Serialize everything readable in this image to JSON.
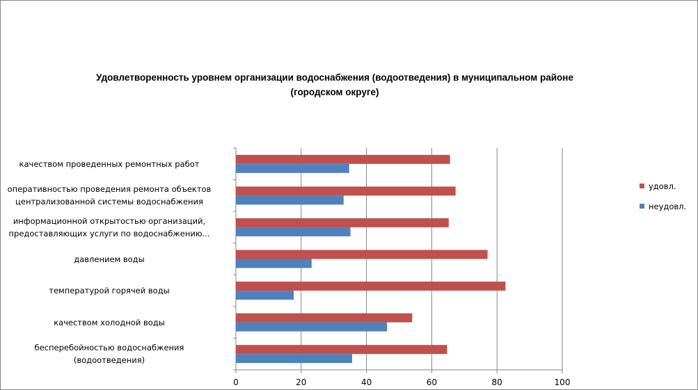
{
  "chart_data": {
    "type": "bar",
    "orientation": "horizontal",
    "title": "Удовлетворенность уровнем организации водоснабжения (водоотведения) в муниципальном районе (городском округе)",
    "title_lines": [
      "Удовлетворенность уровнем организации водоснабжения (водоотведения) в муниципальном районе",
      "(городском округе)"
    ],
    "categories": [
      [
        "качеством проведенных ремонтных работ"
      ],
      [
        "оперативностью проведения ремонта объектов",
        "централизованной системы водоснабжения"
      ],
      [
        "информационной открытостью организаций,",
        "предоставляющих услуги по водоснабжению..."
      ],
      [
        "давлением воды"
      ],
      [
        "температурой горячей воды"
      ],
      [
        "качеством холодной воды"
      ],
      [
        "бесперебойностью водоснабжения",
        "(водоотведения)"
      ]
    ],
    "series": [
      {
        "name": "удовл.",
        "color": "#C0504D",
        "values": [
          65.6,
          67.3,
          65.2,
          77.1,
          82.6,
          54.0,
          64.7
        ]
      },
      {
        "name": "неудовл.",
        "color": "#4F81BD",
        "values": [
          34.7,
          33.0,
          35.1,
          23.2,
          17.7,
          46.3,
          35.6
        ]
      }
    ],
    "xlim": [
      0,
      100
    ],
    "xticks": [
      "0",
      "20",
      "40",
      "60",
      "80",
      "100"
    ],
    "grid": true,
    "legend_position": "right"
  }
}
